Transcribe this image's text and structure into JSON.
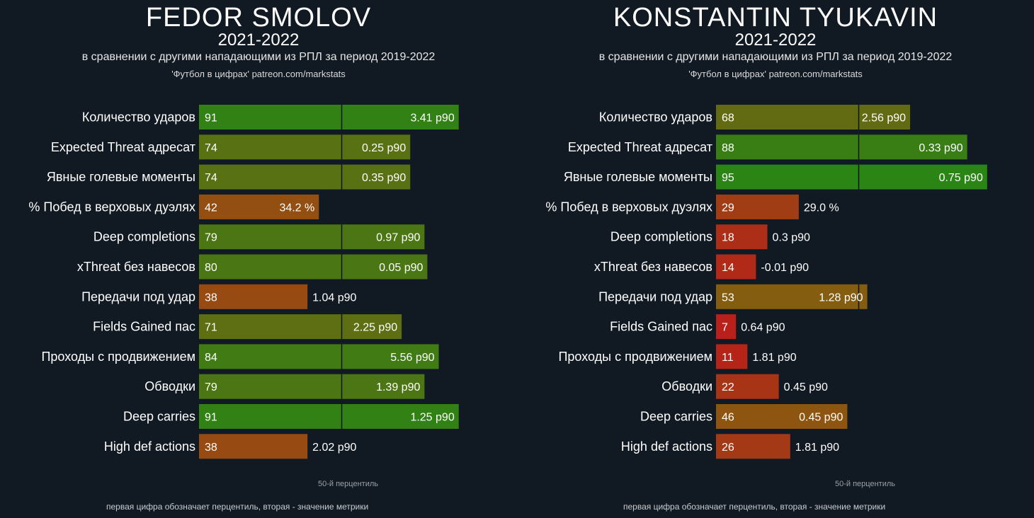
{
  "chart_data": [
    {
      "type": "bar",
      "title": "FEDOR SMOLOV",
      "subtitle": "2021-2022",
      "description": "в сравнении с другими нападающими из РПЛ за период 2019-2022",
      "credit": "'Футбол в цифрах' patreon.com/markstats",
      "median_label": "50-й перцентиль",
      "footnote": "первая цифра обозначает перцентиль, вторая - значение метрики",
      "xlim": [
        0,
        100
      ],
      "categories": [
        "Количество ударов",
        "Expected Threat адресат",
        "Явные голевые моменты",
        "% Побед в верховых дуэлях",
        "Deep completions",
        "xThreat без навесов",
        "Передачи под удар",
        "Fields Gained пас",
        "Проходы с продвижением",
        "Обводки",
        "Deep carries",
        "High def actions"
      ],
      "percentiles": [
        91,
        74,
        74,
        42,
        79,
        80,
        38,
        71,
        84,
        79,
        91,
        38
      ],
      "values": [
        "3.41 p90",
        "0.25 p90",
        "0.35 p90",
        "34.2 %",
        "0.97 p90",
        "0.05 p90",
        "1.04 p90",
        "2.25 p90",
        "5.56 p90",
        "1.39 p90",
        "1.25 p90",
        "2.02 p90"
      ]
    },
    {
      "type": "bar",
      "title": "KONSTANTIN TYUKAVIN",
      "subtitle": "2021-2022",
      "description": "в сравнении с другими нападающими из РПЛ за период 2019-2022",
      "credit": "'Футбол в цифрах' patreon.com/markstats",
      "median_label": "50-й перцентиль",
      "footnote": "первая цифра обозначает перцентиль, вторая - значение метрики",
      "xlim": [
        0,
        100
      ],
      "categories": [
        "Количество ударов",
        "Expected Threat адресат",
        "Явные голевые моменты",
        "% Побед в верховых дуэлях",
        "Deep completions",
        "xThreat без навесов",
        "Передачи под удар",
        "Fields Gained пас",
        "Проходы с продвижением",
        "Обводки",
        "Deep carries",
        "High def actions"
      ],
      "percentiles": [
        68,
        88,
        95,
        29,
        18,
        14,
        53,
        7,
        11,
        22,
        46,
        26
      ],
      "values": [
        "2.56 p90",
        "0.33 p90",
        "0.75 p90",
        "29.0 %",
        "0.3 p90",
        "-0.01 p90",
        "1.28 p90",
        "0.64 p90",
        "1.81 p90",
        "0.45 p90",
        "0.45 p90",
        "1.81 p90"
      ]
    }
  ],
  "colors": {
    "background": "#111a23",
    "low": "#c0161a",
    "mid": "#8a5a10",
    "high": "#1f8a16",
    "median_line": "#0d151c"
  }
}
